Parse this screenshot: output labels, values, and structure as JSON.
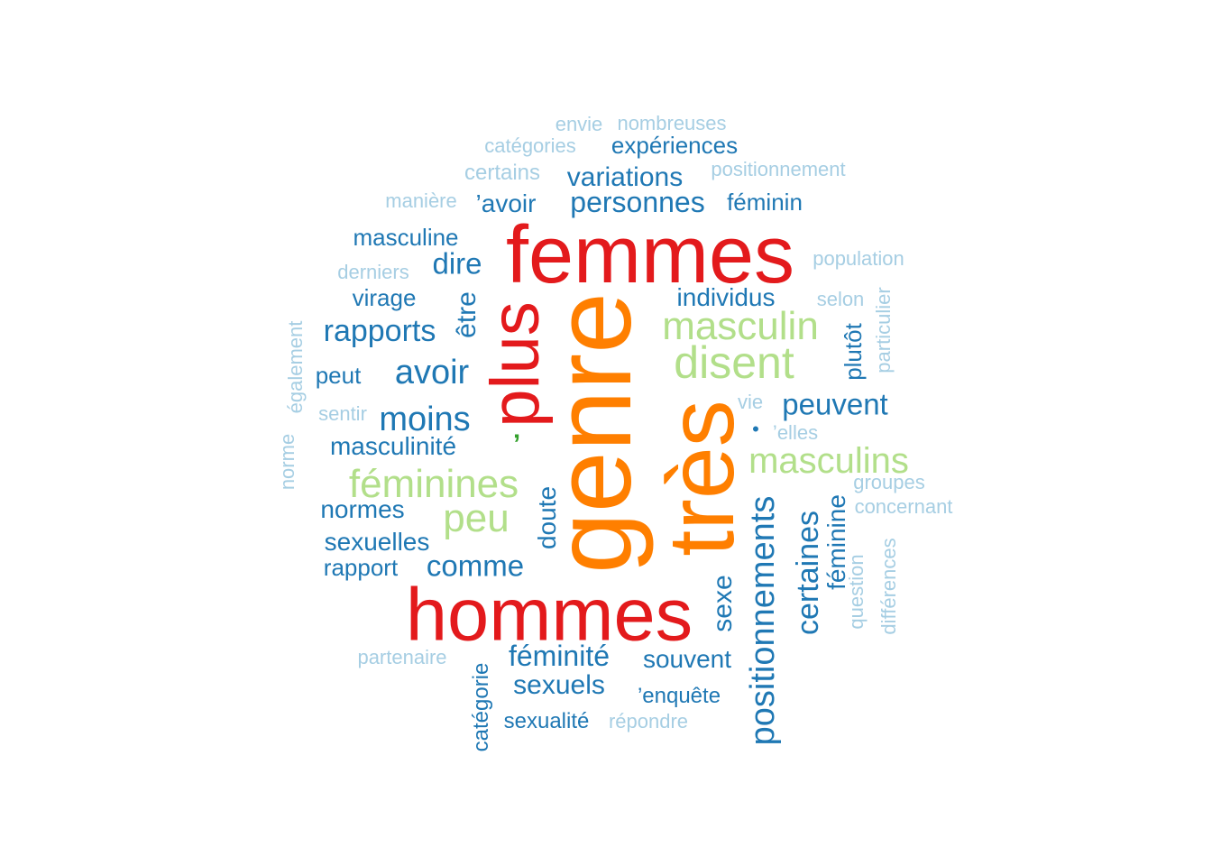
{
  "wordcloud": {
    "palette": {
      "c1": "#e31a1c",
      "c2": "#ff7f00",
      "c3": "#b2df8a",
      "c4": "#1f78b4",
      "c5": "#a6cee3",
      "c6": "#33a02c"
    },
    "words": [
      {
        "text": "genre"
      },
      {
        "text": "femmes"
      },
      {
        "text": "hommes"
      },
      {
        "text": "très"
      },
      {
        "text": "plus"
      },
      {
        "text": "masculin"
      },
      {
        "text": "disent"
      },
      {
        "text": "masculins"
      },
      {
        "text": "féminines"
      },
      {
        "text": "peu"
      },
      {
        "text": "positionnements"
      },
      {
        "text": "avoir"
      },
      {
        "text": "moins"
      },
      {
        "text": "rapports"
      },
      {
        "text": "peuvent"
      },
      {
        "text": "personnes"
      },
      {
        "text": "variations"
      },
      {
        "text": "expériences"
      },
      {
        "text": "dire"
      },
      {
        "text": "individus"
      },
      {
        "text": "masculinité"
      },
      {
        "text": "normes"
      },
      {
        "text": "sexuelles"
      },
      {
        "text": "comme"
      },
      {
        "text": "féminité"
      },
      {
        "text": "sexuels"
      },
      {
        "text": "souvent"
      },
      {
        "text": "certaines"
      },
      {
        "text": "féminine"
      },
      {
        "text": "sexe"
      },
      {
        "text": "doute"
      },
      {
        "text": "être"
      },
      {
        "text": "catégorie"
      },
      {
        "text": "plutôt"
      },
      {
        "text": "masculine"
      },
      {
        "text": "virage"
      },
      {
        "text": "peut"
      },
      {
        "text": "rapport"
      },
      {
        "text": "sexualité"
      },
      {
        "text": "’avoir"
      },
      {
        "text": "féminin"
      },
      {
        "text": "’enquête"
      },
      {
        "text": "envie"
      },
      {
        "text": "nombreuses"
      },
      {
        "text": "catégories"
      },
      {
        "text": "certains"
      },
      {
        "text": "positionnement"
      },
      {
        "text": "manière"
      },
      {
        "text": "population"
      },
      {
        "text": "derniers"
      },
      {
        "text": "selon"
      },
      {
        "text": "particulier"
      },
      {
        "text": "vie"
      },
      {
        "text": "’elles"
      },
      {
        "text": "sentir"
      },
      {
        "text": "également"
      },
      {
        "text": "norme"
      },
      {
        "text": "groupes"
      },
      {
        "text": "concernant"
      },
      {
        "text": "question"
      },
      {
        "text": "différences"
      },
      {
        "text": "partenaire"
      },
      {
        "text": "répondre"
      },
      {
        "text": "•"
      },
      {
        "text": "’"
      }
    ]
  }
}
